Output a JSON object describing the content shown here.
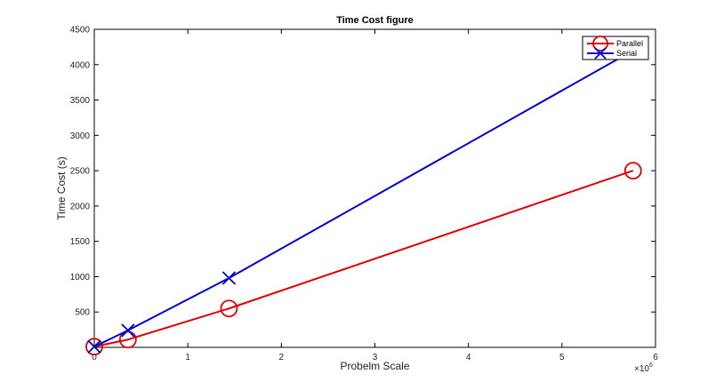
{
  "chart_data": {
    "type": "line",
    "title": "Time Cost figure",
    "xlabel": "Probelm Scale",
    "ylabel": "Time Cost (s)",
    "x_multiplier": "×10",
    "x_multiplier_exp": "6",
    "xlim": [
      0,
      6000000
    ],
    "ylim": [
      0,
      4500
    ],
    "x_ticks": [
      0,
      1000000,
      2000000,
      3000000,
      4000000,
      5000000,
      6000000
    ],
    "x_tick_labels": [
      "0",
      "1",
      "2",
      "3",
      "4",
      "5",
      "6"
    ],
    "y_ticks": [
      500,
      1000,
      1500,
      2000,
      2500,
      3000,
      3500,
      4000,
      4500
    ],
    "y_tick_labels": [
      "500",
      "1000",
      "1500",
      "2000",
      "2500",
      "3000",
      "3500",
      "4000",
      "4500"
    ],
    "grid": false,
    "legend_position": "top-right",
    "series": [
      {
        "name": "Parallel",
        "color": "#e00000",
        "marker": "circle",
        "x": [
          0,
          360000,
          1440000,
          5760000
        ],
        "y": [
          10,
          110,
          550,
          2500
        ]
      },
      {
        "name": "Serial",
        "color": "#0000d0",
        "marker": "x",
        "x": [
          0,
          360000,
          1440000,
          5760000
        ],
        "y": [
          10,
          240,
          980,
          4200
        ]
      }
    ]
  }
}
